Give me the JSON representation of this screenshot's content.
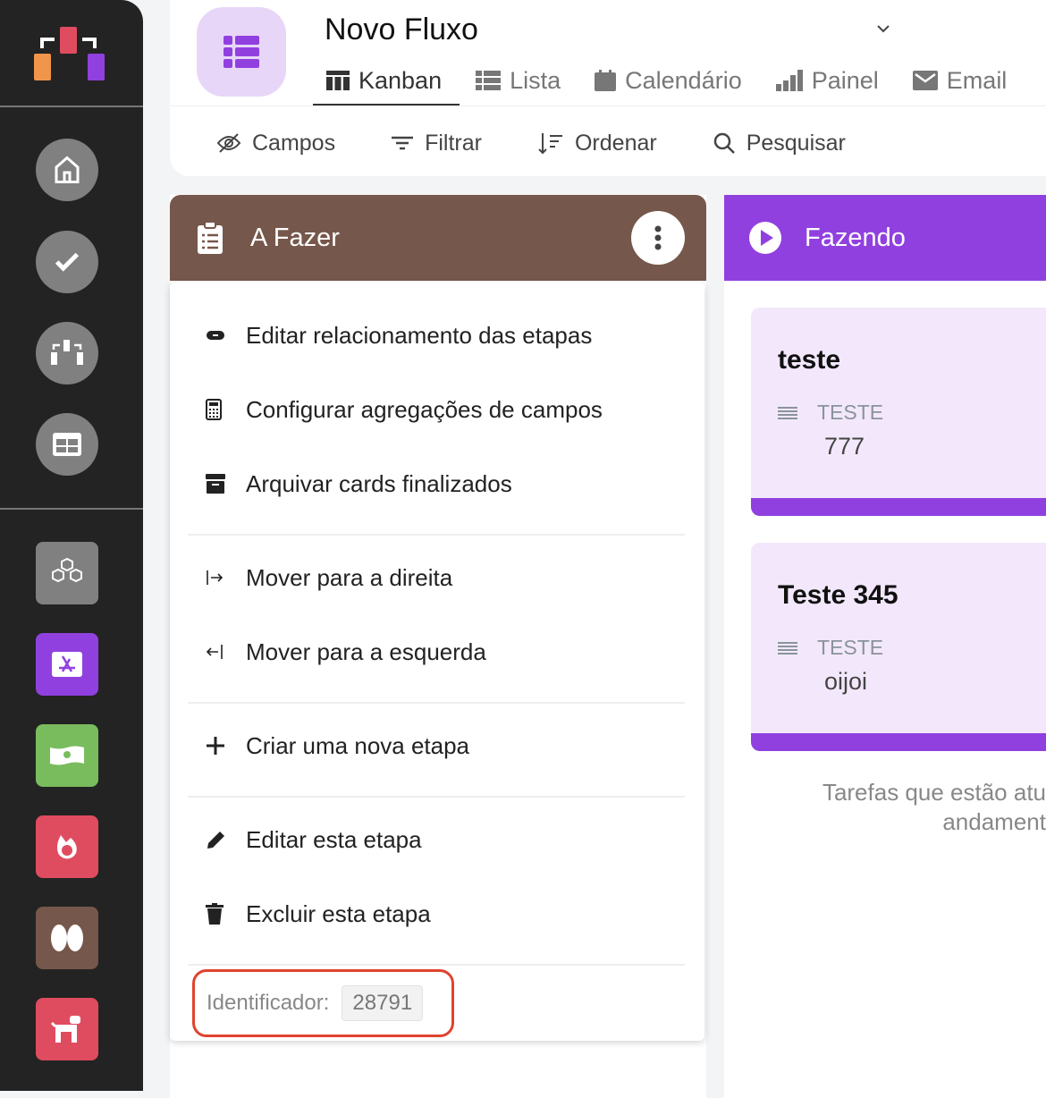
{
  "sidebar": {
    "top_icons": [
      "home-icon",
      "check-icon",
      "flow-icon",
      "table-icon"
    ],
    "apps": [
      {
        "icon": "cubes-icon",
        "color": "#808080"
      },
      {
        "icon": "app-store-icon",
        "color": "#9140e0"
      },
      {
        "icon": "money-icon",
        "color": "#79bc5d"
      },
      {
        "icon": "fire-icon",
        "color": "#e04c5f"
      },
      {
        "icon": "brain-icon",
        "color": "#76574b"
      },
      {
        "icon": "dog-icon",
        "color": "#e04c5f"
      }
    ]
  },
  "header": {
    "title": "Novo Fluxo",
    "tabs": [
      {
        "label": "Kanban",
        "icon": "kanban-icon",
        "active": true
      },
      {
        "label": "Lista",
        "icon": "list-icon"
      },
      {
        "label": "Calendário",
        "icon": "calendar-icon"
      },
      {
        "label": "Painel",
        "icon": "chart-icon"
      },
      {
        "label": "Email",
        "icon": "mail-icon"
      }
    ],
    "tools": [
      {
        "label": "Campos",
        "icon": "eye-off-icon"
      },
      {
        "label": "Filtrar",
        "icon": "filter-icon"
      },
      {
        "label": "Ordenar",
        "icon": "sort-icon"
      },
      {
        "label": "Pesquisar",
        "icon": "search-icon"
      }
    ]
  },
  "columns": [
    {
      "title": "A Fazer",
      "color": "#76574b"
    },
    {
      "title": "Fazendo",
      "color": "#9140e0",
      "description": "Tarefas que estão atu\nandament"
    }
  ],
  "menu": {
    "items": [
      "Editar relacionamento das etapas",
      "Configurar agregações de campos",
      "Arquivar cards finalizados",
      "Mover para a direita",
      "Mover para a esquerda",
      "Criar uma nova etapa",
      "Editar esta etapa",
      "Excluir esta etapa"
    ],
    "identifier_label": "Identificador:",
    "identifier_value": "28791"
  },
  "cards": [
    {
      "title": "teste",
      "field": "TESTE",
      "value": "777"
    },
    {
      "title": "Teste 345",
      "field": "TESTE",
      "value": "oijoi"
    }
  ],
  "colors": {
    "accent": "#9140e0",
    "highlight": "#e0432f"
  }
}
